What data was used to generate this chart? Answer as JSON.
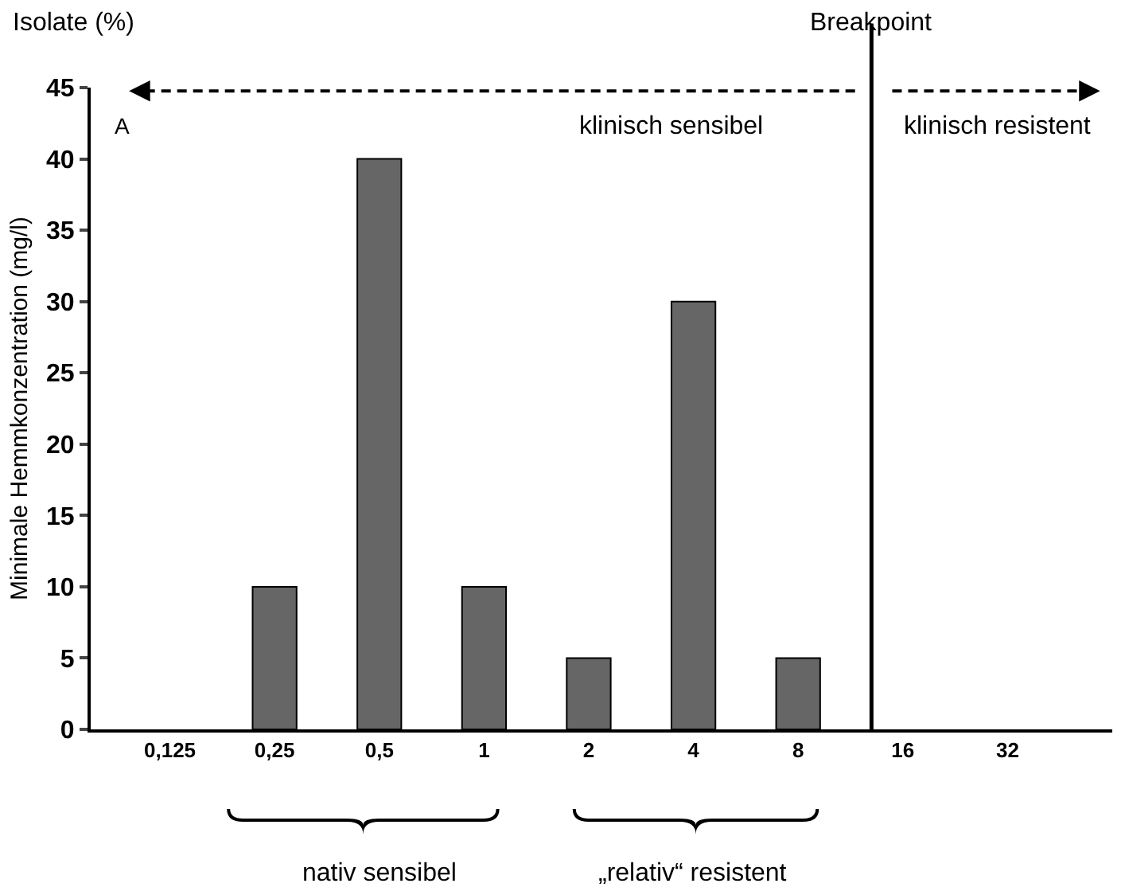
{
  "chart_data": {
    "type": "bar",
    "ylabel": "Minimale Hemmkonzentration (mg/l)",
    "x": [
      0.125,
      0.25,
      0.5,
      1,
      2,
      4,
      8,
      16,
      32
    ],
    "values": [
      0,
      10,
      40,
      10,
      5,
      30,
      5,
      0,
      0
    ],
    "color": "#666666",
    "log": "x",
    "xlim": [
      0.074,
      64
    ],
    "xticks": [
      {
        "value": 0.125,
        "label": "0,125"
      },
      {
        "value": 0.25,
        "label": "0,25"
      },
      {
        "value": 0.5,
        "label": "0,5"
      },
      1,
      2,
      4,
      8,
      16,
      32
    ],
    "ylim": [
      0,
      45
    ],
    "yticks": [
      0,
      5,
      10,
      15,
      20,
      25,
      30,
      35,
      40,
      45
    ],
    "grid": false,
    "legend": false,
    "ref_lines": [
      {
        "axis": "x",
        "value": 13,
        "label": "Breakpoint",
        "color": "#000000",
        "line_style": "solid"
      }
    ],
    "annotations": [
      "Isolate (%)",
      "A",
      "klinisch sensibel",
      "klinisch resistent",
      "nativ sensibel",
      "„relativ“ resistent"
    ]
  }
}
